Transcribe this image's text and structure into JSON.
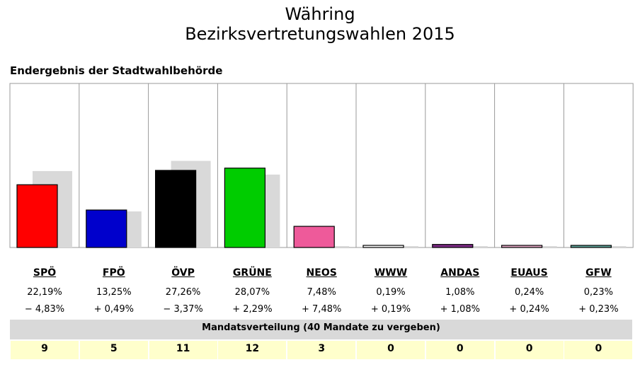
{
  "header": {
    "title": "Währing",
    "subtitle": "Bezirksvertretungswahlen 2015",
    "source_label": "Endergebnis der Stadtwahlbehörde"
  },
  "mandate_header": "Mandatsverteilung (40 Mandate zu vergeben)",
  "chart_data": {
    "type": "bar",
    "categories": [
      "SPÖ",
      "FPÖ",
      "ÖVP",
      "GRÜNE",
      "NEOS",
      "WWW",
      "ANDAS",
      "EUAUS",
      "GFW"
    ],
    "series": [
      {
        "values": [
          22.19,
          13.25,
          27.26,
          28.07,
          7.48,
          0.19,
          1.08,
          0.24,
          0.23
        ]
      },
      {
        "values": [
          27.02,
          12.76,
          30.63,
          25.78,
          0,
          0,
          0,
          0,
          0
        ]
      }
    ],
    "colors": [
      "#ff0000",
      "#0000cc",
      "#000000",
      "#00cc00",
      "#ee5a9a",
      "#ffffff",
      "#7b2a84",
      "#e6a8c6",
      "#5fa69b"
    ],
    "previous_color": "#d9d9d9",
    "ylim": [
      0,
      58
    ],
    "percent_labels": [
      "22,19%",
      "13,25%",
      "27,26%",
      "28,07%",
      "7,48%",
      "0,19%",
      "1,08%",
      "0,24%",
      "0,23%"
    ],
    "change_labels": [
      "− 4,83%",
      "+ 0,49%",
      "− 3,37%",
      "+ 2,29%",
      "+ 7,48%",
      "+ 0,19%",
      "+ 1,08%",
      "+ 0,24%",
      "+ 0,23%"
    ],
    "seats": [
      "9",
      "5",
      "11",
      "12",
      "3",
      "0",
      "0",
      "0",
      "0"
    ]
  }
}
